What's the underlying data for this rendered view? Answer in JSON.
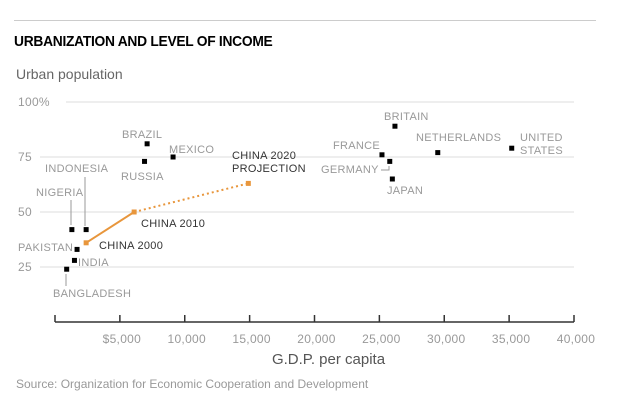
{
  "chart_data": {
    "type": "scatter",
    "title": "URBANIZATION AND LEVEL OF INCOME",
    "ylabel": "Urban population",
    "xlabel": "G.D.P. per capita",
    "source": "Source: Organization for Economic Cooperation and Development",
    "xlim": [
      0,
      40000
    ],
    "ylim": [
      0,
      100
    ],
    "x_ticks": [
      5000,
      10000,
      15000,
      20000,
      25000,
      30000,
      35000,
      40000
    ],
    "x_tick_labels": [
      "$5,000",
      "10,000",
      "15,000",
      "20,000",
      "25,000",
      "30,000",
      "35,000",
      "40,000"
    ],
    "y_ticks": [
      25,
      50,
      75,
      100
    ],
    "y_tick_labels": [
      "25",
      "50",
      "75",
      "100%"
    ],
    "grid": true,
    "colors": {
      "points": "#000000",
      "china": "#e8963c",
      "label": "#999999",
      "china_label": "#333333"
    },
    "points": [
      {
        "name": "BRAZIL",
        "x": 7100,
        "y": 81
      },
      {
        "name": "MEXICO",
        "x": 9100,
        "y": 75
      },
      {
        "name": "RUSSIA",
        "x": 6900,
        "y": 73
      },
      {
        "name": "INDONESIA",
        "x": 2400,
        "y": 42
      },
      {
        "name": "NIGERIA",
        "x": 1300,
        "y": 42
      },
      {
        "name": "PAKISTAN",
        "x": 1700,
        "y": 33
      },
      {
        "name": "INDIA",
        "x": 1500,
        "y": 28
      },
      {
        "name": "BANGLADESH",
        "x": 900,
        "y": 24
      },
      {
        "name": "BRITAIN",
        "x": 26200,
        "y": 89
      },
      {
        "name": "FRANCE",
        "x": 25200,
        "y": 76
      },
      {
        "name": "GERMANY",
        "x": 25800,
        "y": 73
      },
      {
        "name": "JAPAN",
        "x": 26000,
        "y": 65
      },
      {
        "name": "NETHERLANDS",
        "x": 29500,
        "y": 77
      },
      {
        "name": "UNITED STATES",
        "x": 35200,
        "y": 79
      }
    ],
    "china_series": [
      {
        "name": "CHINA 2000",
        "x": 2400,
        "y": 36
      },
      {
        "name": "CHINA 2010",
        "x": 6100,
        "y": 50
      },
      {
        "name": "CHINA 2020 PROJECTION",
        "x": 14900,
        "y": 63
      }
    ]
  }
}
